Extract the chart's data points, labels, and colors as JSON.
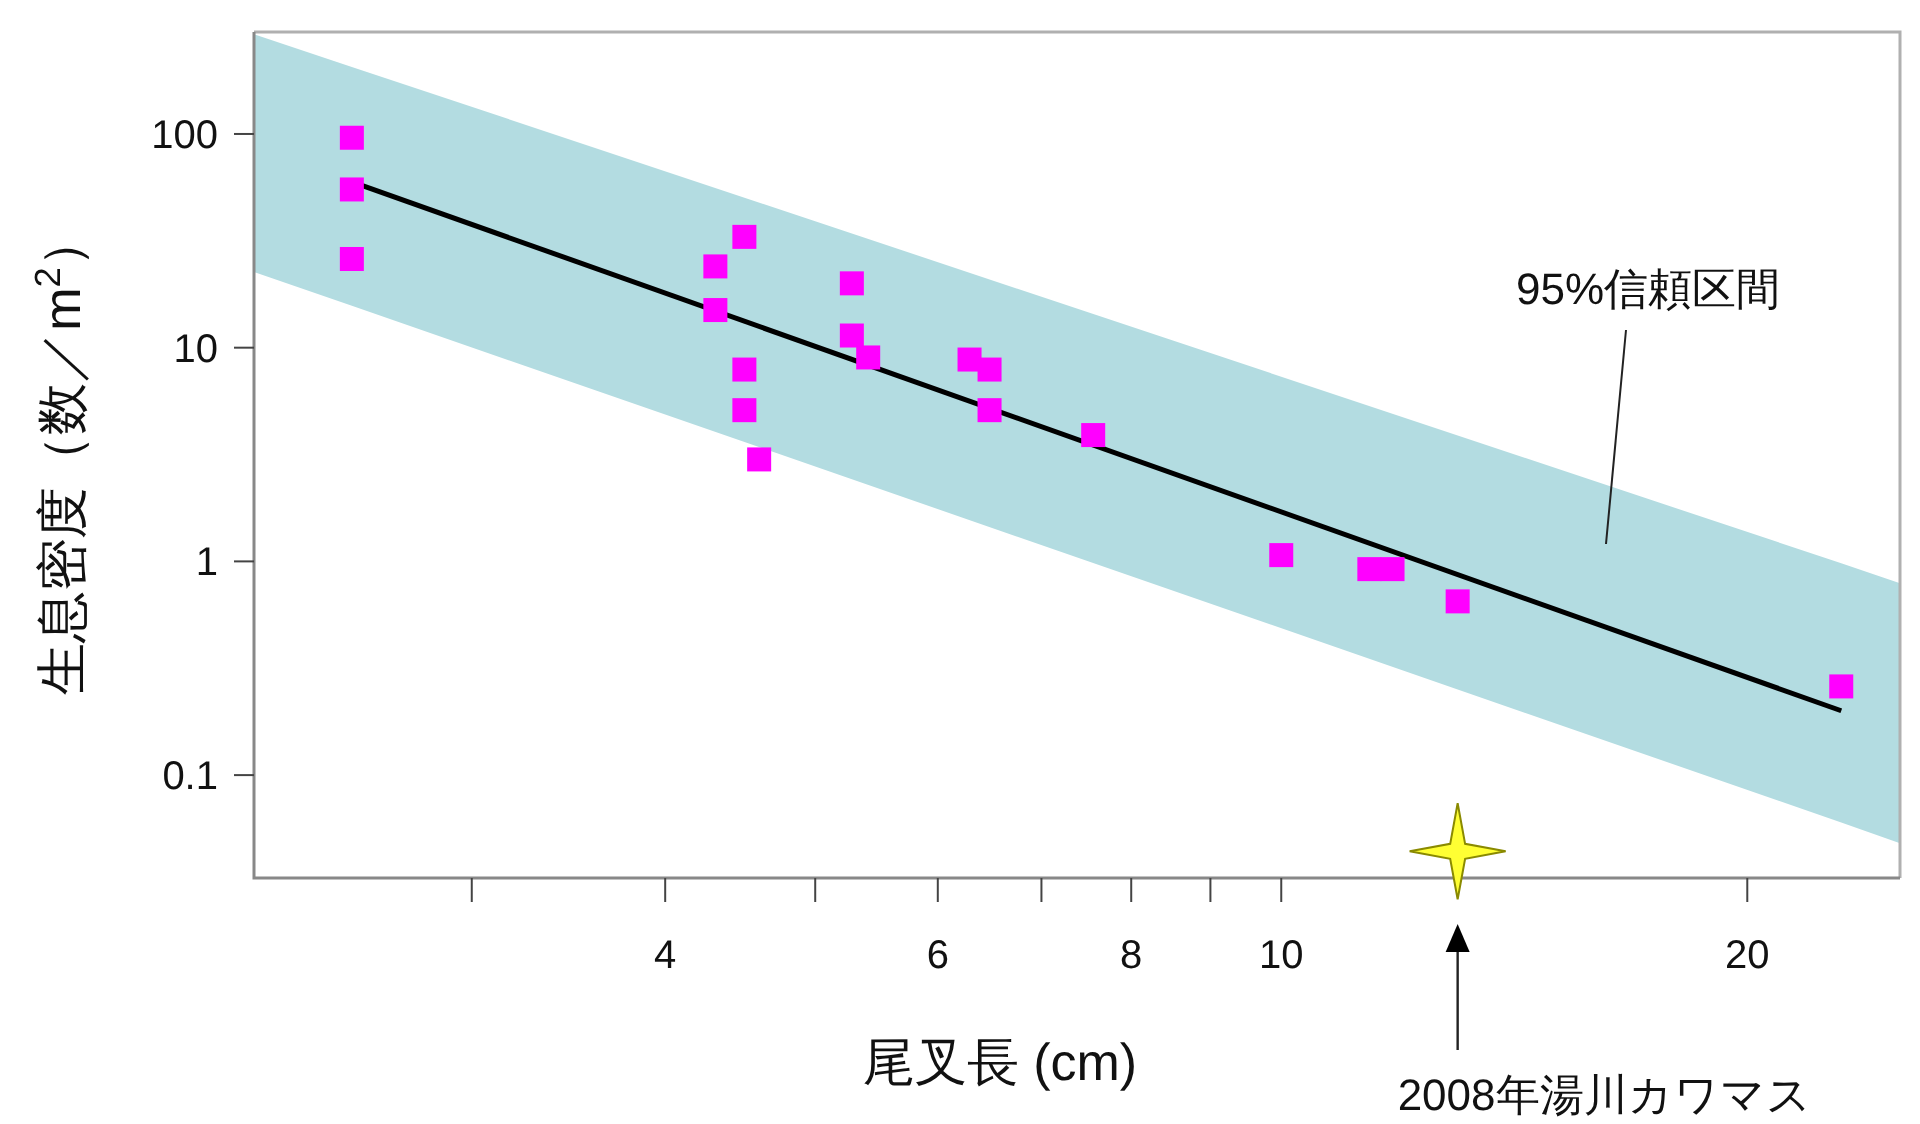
{
  "chart_data": {
    "type": "scatter",
    "xlabel": "尾叉長 (cm)",
    "ylabel": "生息密度（数／m$^{2}$）",
    "log": "xy",
    "grid": false,
    "xlim": [
      2.17,
      25.1
    ],
    "ylim": [
      0.033,
      300
    ],
    "xticks": [
      {
        "value": 3,
        "label": null
      },
      4,
      {
        "value": 5,
        "label": null
      },
      6,
      {
        "value": 7,
        "label": null
      },
      8,
      {
        "value": 9,
        "label": null
      },
      10,
      20
    ],
    "yticks": [
      0.1,
      1,
      10,
      100
    ],
    "series": [
      {
        "type": "line",
        "color": "#000000",
        "x": [
          2.17,
          2.51,
          23,
          25.1
        ],
        "values": [
          null,
          59.7,
          0.2,
          null
        ],
        "lower": [
          22.6,
          15.7,
          0.06,
          0.048
        ],
        "upper": [
          293,
          206,
          0.98,
          0.79
        ]
      },
      {
        "color": "#ff00ff",
        "marker": "square",
        "x": [
          2.51,
          2.51,
          2.51,
          4.31,
          4.5,
          4.31,
          4.5,
          4.5,
          4.6,
          5.28,
          5.28,
          5.41,
          6.29,
          6.48,
          6.48,
          7.56,
          10,
          11.4,
          11.8,
          13,
          23
        ],
        "values": [
          96,
          55,
          26,
          24,
          33,
          15,
          7.9,
          5.1,
          3,
          20,
          11.4,
          9,
          8.8,
          7.9,
          5.1,
          3.9,
          1.07,
          0.92,
          0.92,
          0.65,
          0.26
        ]
      },
      {
        "color": "#ffff33",
        "marker": "star",
        "x": [
          13
        ],
        "values": [
          0.044
        ]
      }
    ],
    "annotations": [
      "95%信頼区間",
      "2008年湯川カワマス"
    ]
  }
}
